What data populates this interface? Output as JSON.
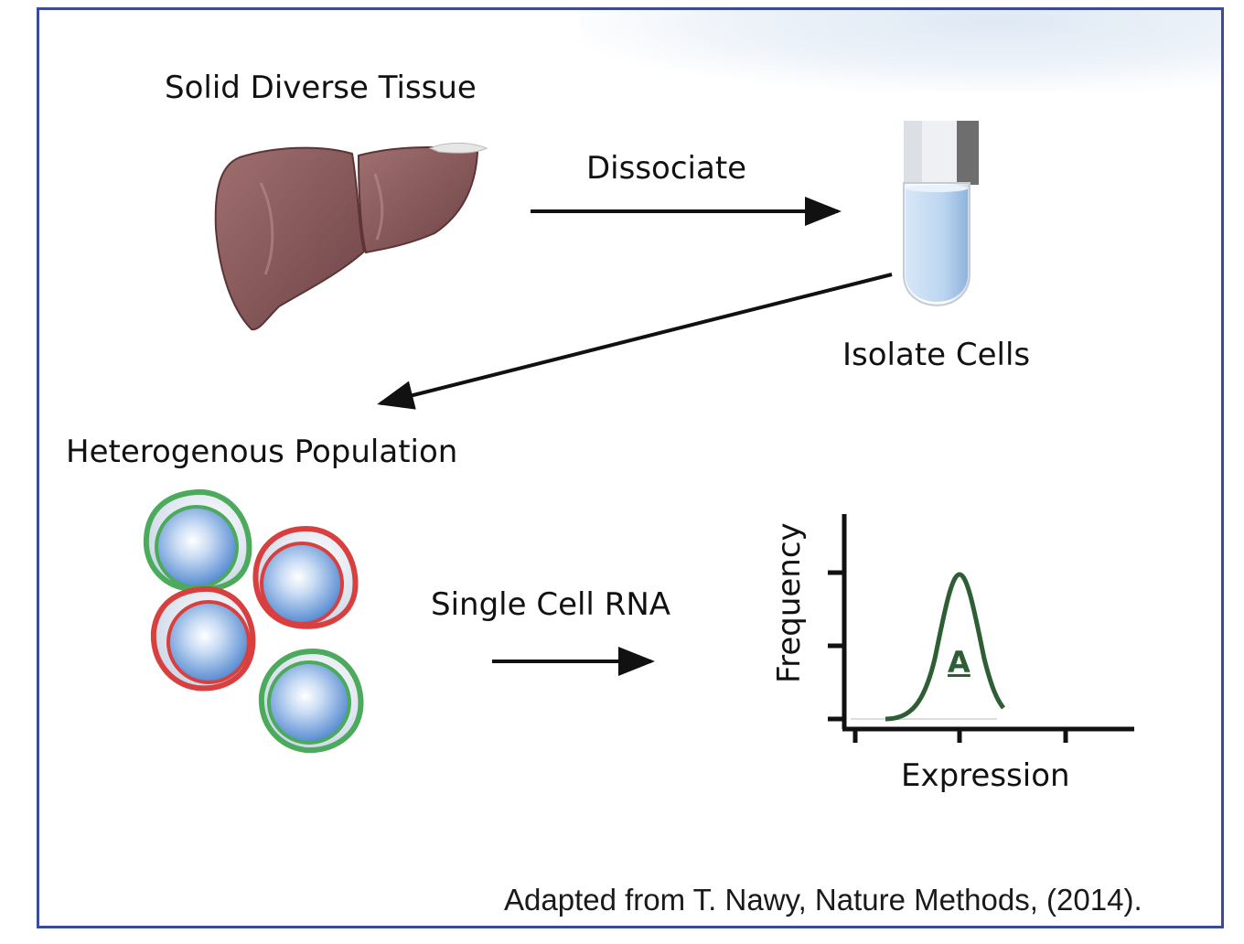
{
  "labels": {
    "solid_tissue": "Solid Diverse Tissue",
    "dissociate": "Dissociate",
    "isolate_cells": "Isolate Cells",
    "heterogenous_population": "Heterogenous Population",
    "single_cell_rna": "Single Cell RNA"
  },
  "chart_data": {
    "type": "line",
    "ylabel": "Frequency",
    "xlabel": "Expression",
    "annotation": "A",
    "series": [
      {
        "name": "A",
        "shape": "gaussian-peak",
        "color": "#2e5e34"
      }
    ]
  },
  "citation": "Adapted from T. Nawy, Nature Methods, (2014).",
  "colors": {
    "border": "#3a4a9c",
    "liver": "#8a5a5c",
    "green_cell": "#4caa5c",
    "red_cell": "#d84040",
    "nucleus": "#6fa0dc",
    "curve": "#2e5e34"
  }
}
